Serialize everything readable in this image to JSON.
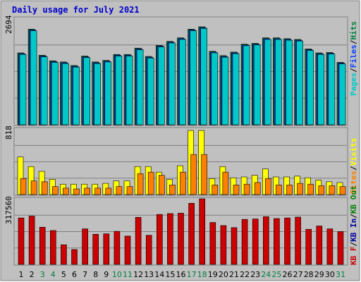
{
  "title": "Daily usage for July 2021",
  "colors": {
    "background": "#c0c0c0",
    "frame": "#808080",
    "title": "#0000cc",
    "pages": "#00c8c8",
    "files": "#0040ff",
    "hits": "#008040",
    "sites": "#ff8000",
    "visits": "#ffff00",
    "kb_in": "#0000a0",
    "kb_out": "#008000",
    "kb": "#cc0000",
    "weekend": "#008040",
    "weekday": "#000000"
  },
  "chart_data": [
    {
      "type": "bar",
      "panel": "hits",
      "ymax_label": "2694",
      "ymax": 2694,
      "legend": [
        "Pages",
        "/",
        "Files",
        "/",
        "Hits"
      ],
      "series": [
        {
          "name": "Hits",
          "values": [
            1820,
            2420,
            1760,
            1620,
            1590,
            1500,
            1740,
            1590,
            1630,
            1780,
            1780,
            1940,
            1730,
            2010,
            2110,
            2200,
            2420,
            2480,
            1860,
            1750,
            1840,
            2040,
            2060,
            2200,
            2200,
            2180,
            2160,
            1920,
            1820,
            1830,
            1580
          ]
        },
        {
          "name": "Files",
          "values": [
            1800,
            2400,
            1740,
            1600,
            1570,
            1480,
            1720,
            1570,
            1610,
            1760,
            1760,
            1920,
            1710,
            1990,
            2090,
            2180,
            2400,
            2460,
            1840,
            1730,
            1820,
            2020,
            2040,
            2180,
            2180,
            2160,
            2140,
            1900,
            1800,
            1810,
            1560
          ]
        },
        {
          "name": "Pages",
          "values": [
            1780,
            2380,
            1720,
            1580,
            1550,
            1460,
            1700,
            1550,
            1590,
            1740,
            1740,
            1900,
            1690,
            1970,
            2070,
            2160,
            2380,
            2440,
            1820,
            1710,
            1800,
            2000,
            2020,
            2160,
            2160,
            2140,
            2120,
            1880,
            1780,
            1790,
            1540
          ]
        }
      ]
    },
    {
      "type": "bar",
      "panel": "visits",
      "ymax_label": "818",
      "ymax": 818,
      "legend": [
        "Visits",
        "/",
        "Sites"
      ],
      "series": [
        {
          "name": "Visits",
          "values": [
            470,
            350,
            290,
            190,
            130,
            130,
            130,
            130,
            140,
            170,
            170,
            350,
            350,
            280,
            190,
            360,
            800,
            800,
            200,
            350,
            210,
            220,
            240,
            320,
            220,
            220,
            230,
            210,
            180,
            160,
            150
          ]
        },
        {
          "name": "Sites",
          "values": [
            200,
            170,
            160,
            100,
            80,
            70,
            80,
            80,
            80,
            100,
            100,
            260,
            280,
            240,
            120,
            280,
            500,
            500,
            120,
            280,
            120,
            130,
            150,
            200,
            120,
            120,
            140,
            130,
            110,
            110,
            100
          ]
        }
      ]
    },
    {
      "type": "bar",
      "panel": "kbytes",
      "ymax_label": "317560",
      "ymax": 317560,
      "legend": [
        "KB F",
        "/",
        "KB In",
        "/",
        "KB Out"
      ],
      "series": [
        {
          "name": "KB F",
          "values": [
            225000,
            234000,
            180000,
            164000,
            95000,
            72000,
            172000,
            146000,
            148000,
            160000,
            137000,
            228000,
            141000,
            242000,
            246000,
            248000,
            296000,
            317560,
            203000,
            188000,
            178000,
            218000,
            220000,
            231000,
            222000,
            225000,
            229000,
            170000,
            186000,
            172000,
            159000
          ]
        }
      ]
    }
  ],
  "x_labels": [
    "1",
    "2",
    "3",
    "4",
    "5",
    "6",
    "7",
    "8",
    "9",
    "10",
    "11",
    "12",
    "13",
    "14",
    "15",
    "16",
    "17",
    "18",
    "19",
    "20",
    "21",
    "22",
    "23",
    "24",
    "25",
    "26",
    "27",
    "28",
    "29",
    "30",
    "31"
  ],
  "weekend_days": [
    3,
    4,
    10,
    11,
    17,
    18,
    24,
    25,
    31
  ]
}
